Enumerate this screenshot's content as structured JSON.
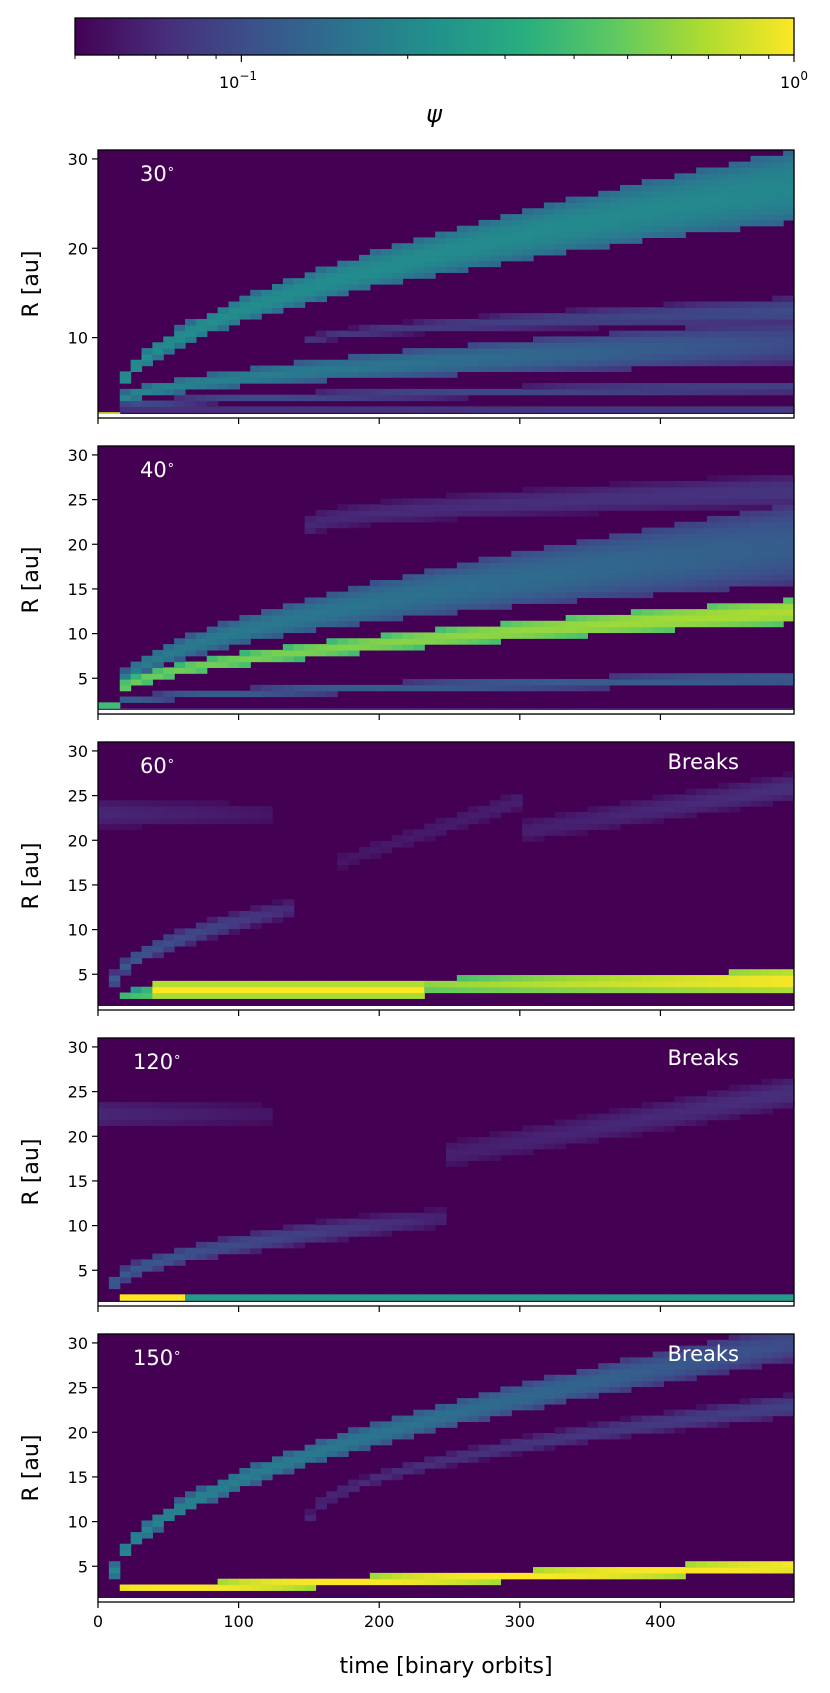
{
  "colorbar": {
    "label": "ψ",
    "scale": "log",
    "colormap": "viridis",
    "range": [
      0.05,
      1.0
    ],
    "ticks": [
      {
        "value": 0.1,
        "base": "10",
        "exp": "−1"
      },
      {
        "value": 1.0,
        "base": "10",
        "exp": "0"
      }
    ]
  },
  "colors": {
    "background_low": "#440154",
    "high": "#fde725",
    "mid": "#21918c"
  },
  "chart_data": {
    "type": "heatmap",
    "xlabel": "time [binary orbits]",
    "ylabel": "R [au]",
    "xlim": [
      0,
      495
    ],
    "ylim": [
      1.0,
      31.0
    ],
    "x_ticks": [
      0,
      100,
      200,
      300,
      400
    ],
    "panels": [
      {
        "label": "30",
        "breaks_label": "",
        "y_ticks": [
          10,
          20,
          30
        ],
        "features": [
          {
            "type": "stripe",
            "t": [
              0,
              12
            ],
            "R": [
              1.6,
              1.6
            ],
            "w": [
              0.7,
              0.7
            ],
            "v": [
              1.0,
              1.0
            ]
          },
          {
            "type": "stripe",
            "t": [
              12,
              495
            ],
            "R": [
              1.8,
              1.8
            ],
            "w": [
              0.8,
              0.8
            ],
            "v": [
              0.08,
              0.09
            ]
          },
          {
            "type": "fan",
            "t": [
              12,
              495
            ],
            "R0": 2.5,
            "R1": 27,
            "w0": 1.5,
            "w1": 8,
            "v0": 0.22,
            "v1": 0.2
          },
          {
            "type": "fan",
            "t": [
              12,
              495
            ],
            "R0": 2.5,
            "R1": 9.5,
            "w0": 1.2,
            "w1": 5,
            "v0": 0.2,
            "v1": 0.1
          },
          {
            "type": "fan",
            "t": [
              150,
              495
            ],
            "R0": 9.5,
            "R1": 13,
            "w0": 1.0,
            "w1": 3,
            "v0": 0.08,
            "v1": 0.1
          },
          {
            "type": "fan",
            "t": [
              12,
              495
            ],
            "R0": 2.2,
            "R1": 4.5,
            "w0": 0.8,
            "w1": 1.5,
            "v0": 0.1,
            "v1": 0.09
          }
        ]
      },
      {
        "label": "40",
        "breaks_label": "",
        "y_ticks": [
          5,
          10,
          15,
          20,
          25,
          30
        ],
        "features": [
          {
            "type": "stripe",
            "t": [
              0,
              12
            ],
            "R": [
              1.7,
              1.7
            ],
            "w": [
              0.7,
              0.7
            ],
            "v": [
              0.5,
              0.5
            ]
          },
          {
            "type": "fan",
            "t": [
              12,
              495
            ],
            "R0": 3.0,
            "R1": 12.5,
            "w0": 1.2,
            "w1": 2.6,
            "v0": 0.5,
            "v1": 0.7
          },
          {
            "type": "fan",
            "t": [
              12,
              495
            ],
            "R0": 3.0,
            "R1": 20,
            "w0": 1.5,
            "w1": 9,
            "v0": 0.18,
            "v1": 0.12
          },
          {
            "type": "fan",
            "t": [
              150,
              495
            ],
            "R0": 22,
            "R1": 26,
            "w0": 3,
            "w1": 4,
            "v0": 0.07,
            "v1": 0.08
          },
          {
            "type": "fan",
            "t": [
              12,
              495
            ],
            "R0": 2.2,
            "R1": 5.0,
            "w0": 0.8,
            "w1": 1.5,
            "v0": 0.12,
            "v1": 0.12
          },
          {
            "type": "stripe",
            "t": [
              0,
              495
            ],
            "R": [
              1.5,
              1.5
            ],
            "w": [
              0.5,
              0.5
            ],
            "v": [
              0.09,
              0.08
            ]
          }
        ]
      },
      {
        "label": "60",
        "breaks_label": "Breaks",
        "y_ticks": [
          5,
          10,
          15,
          20,
          25,
          30
        ],
        "features": [
          {
            "type": "stripe",
            "t": [
              40,
              230
            ],
            "R": [
              3.3,
              3.3
            ],
            "w": [
              1.4,
              1.4
            ],
            "v": [
              1.0,
              1.0
            ]
          },
          {
            "type": "stripe",
            "t": [
              230,
              495
            ],
            "R": [
              3.8,
              4.3
            ],
            "w": [
              1.4,
              2.2
            ],
            "v": [
              0.6,
              1.0
            ]
          },
          {
            "type": "stripe",
            "t": [
              12,
              60
            ],
            "R": [
              2.5,
              3.2
            ],
            "w": [
              1.0,
              1.5
            ],
            "v": [
              0.35,
              0.55
            ]
          },
          {
            "type": "fan",
            "t": [
              10,
              140
            ],
            "R0": 3.5,
            "R1": 12.5,
            "w0": 1.5,
            "w1": 2.5,
            "v0": 0.12,
            "v1": 0.07
          },
          {
            "type": "stripe",
            "t": [
              0,
              120
            ],
            "R": [
              23,
              23
            ],
            "w": [
              4,
              4
            ],
            "v": [
              0.07,
              0.06
            ]
          },
          {
            "type": "stripe",
            "t": [
              170,
              300
            ],
            "R": [
              17.5,
              24.5
            ],
            "w": [
              3,
              3
            ],
            "v": [
              0.06,
              0.065
            ]
          },
          {
            "type": "stripe",
            "t": [
              300,
              495
            ],
            "R": [
              21,
              26
            ],
            "w": [
              3.5,
              3.5
            ],
            "v": [
              0.065,
              0.075
            ]
          }
        ]
      },
      {
        "label": "120",
        "breaks_label": "Breaks",
        "y_ticks": [
          5,
          10,
          15,
          20,
          25,
          30
        ],
        "features": [
          {
            "type": "stripe",
            "t": [
              12,
              65
            ],
            "R": [
              2.0,
              2.0
            ],
            "w": [
              0.8,
              0.8
            ],
            "v": [
              1.0,
              1.0
            ]
          },
          {
            "type": "stripe",
            "t": [
              65,
              495
            ],
            "R": [
              1.8,
              1.8
            ],
            "w": [
              0.6,
              0.6
            ],
            "v": [
              0.3,
              0.3
            ]
          },
          {
            "type": "fan",
            "t": [
              10,
              250
            ],
            "R0": 3.0,
            "R1": 11,
            "w0": 1.5,
            "w1": 3,
            "v0": 0.12,
            "v1": 0.065
          },
          {
            "type": "stripe",
            "t": [
              0,
              120
            ],
            "R": [
              22.5,
              22.5
            ],
            "w": [
              4,
              4
            ],
            "v": [
              0.07,
              0.06
            ]
          },
          {
            "type": "stripe",
            "t": [
              250,
              495
            ],
            "R": [
              18,
              25
            ],
            "w": [
              4,
              4
            ],
            "v": [
              0.065,
              0.075
            ]
          }
        ]
      },
      {
        "label": "150",
        "breaks_label": "Breaks",
        "y_ticks": [
          5,
          10,
          15,
          20,
          25,
          30
        ],
        "features": [
          {
            "type": "stripe",
            "t": [
              12,
              495
            ],
            "R": [
              2.4,
              5.0
            ],
            "w": [
              0.9,
              1.4
            ],
            "v": [
              1.0,
              1.0
            ]
          },
          {
            "type": "fan",
            "t": [
              10,
              495
            ],
            "R0": 3.0,
            "R1": 30,
            "w0": 1.6,
            "w1": 4,
            "v0": 0.2,
            "v1": 0.1
          },
          {
            "type": "fan",
            "t": [
              150,
              495
            ],
            "R0": 10,
            "R1": 23,
            "w0": 1.5,
            "w1": 2.5,
            "v0": 0.07,
            "v1": 0.09
          },
          {
            "type": "stripe",
            "t": [
              0,
              495
            ],
            "R": [
              1.7,
              1.7
            ],
            "w": [
              0.4,
              0.4
            ],
            "v": [
              0.08,
              0.08
            ]
          }
        ]
      }
    ]
  }
}
